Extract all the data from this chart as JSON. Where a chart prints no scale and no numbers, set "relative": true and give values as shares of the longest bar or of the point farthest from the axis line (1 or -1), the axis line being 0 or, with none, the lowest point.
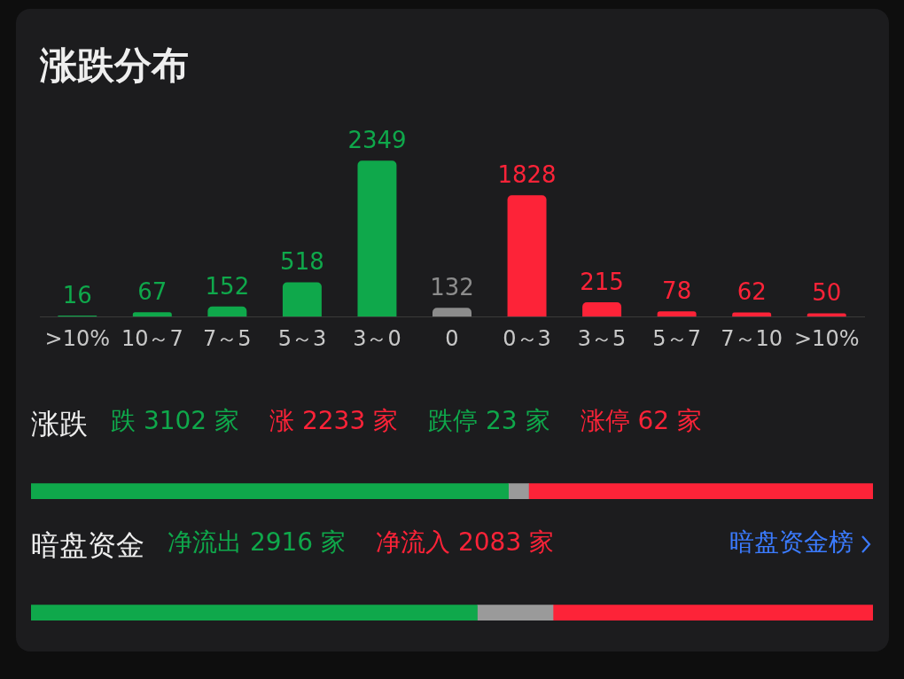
{
  "chart_data": [
    {
      "type": "bar",
      "title": "涨跌分布",
      "categories": [
        ">10%",
        "10～7",
        "7～5",
        "5～3",
        "3～0",
        "0",
        "0～3",
        "3～5",
        "5～7",
        "7～10",
        ">10%"
      ],
      "values": [
        16,
        67,
        152,
        518,
        2349,
        132,
        1828,
        215,
        78,
        62,
        50
      ],
      "colors": [
        "#0fa84b",
        "#0fa84b",
        "#0fa84b",
        "#0fa84b",
        "#0fa84b",
        "#8c8c8c",
        "#fd2338",
        "#fd2338",
        "#fd2338",
        "#fd2338",
        "#fd2338"
      ],
      "data_labels": true,
      "tick_labels": "x"
    },
    {
      "type": "bar",
      "orientation": "horizontal",
      "stacked": true,
      "relative": true,
      "title": "涨跌",
      "annotations": [
        "跌 3102 家",
        "涨 2233 家",
        "跌停 23 家",
        "涨停 62 家"
      ],
      "categories": [
        null
      ],
      "series": [
        {
          "color": "#0fa84b",
          "values": [
            0.567
          ]
        },
        {
          "color": "#9a9a9a",
          "values": [
            0.024
          ]
        },
        {
          "color": "#fd2338",
          "values": [
            0.409
          ]
        }
      ]
    },
    {
      "type": "bar",
      "orientation": "horizontal",
      "stacked": true,
      "relative": true,
      "title": "暗盘资金",
      "annotations": [
        "净流出 2916 家",
        "净流入 2083 家",
        "暗盘资金榜"
      ],
      "categories": [
        null
      ],
      "series": [
        {
          "color": "#0fa84b",
          "values": [
            0.53
          ]
        },
        {
          "color": "#9a9a9a",
          "values": [
            0.09
          ]
        },
        {
          "color": "#fd2338",
          "values": [
            0.38
          ]
        }
      ]
    }
  ]
}
